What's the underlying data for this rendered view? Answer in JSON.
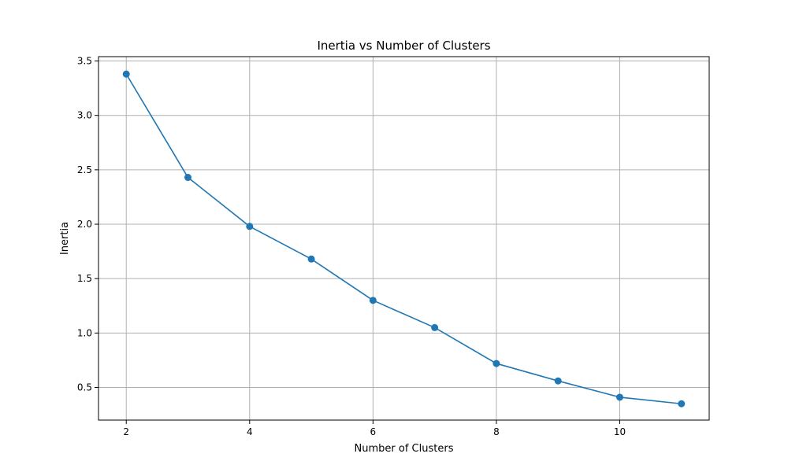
{
  "chart_data": {
    "type": "line",
    "title": "Inertia vs Number of Clusters",
    "xlabel": "Number of Clusters",
    "ylabel": "Inertia",
    "x": [
      2,
      3,
      4,
      5,
      6,
      7,
      8,
      9,
      10,
      11
    ],
    "series": [
      {
        "values": [
          3.38,
          2.43,
          1.98,
          1.68,
          1.3,
          1.05,
          0.72,
          0.56,
          0.41,
          0.35
        ],
        "color": "#1f77b4",
        "marker": "circle"
      }
    ],
    "xlim": [
      1.55,
      11.45
    ],
    "ylim": [
      0.2,
      3.54
    ],
    "xticks": [
      2,
      4,
      6,
      8,
      10
    ],
    "xtick_labels": [
      "2",
      "4",
      "6",
      "8",
      "10"
    ],
    "yticks": [
      0.5,
      1.0,
      1.5,
      2.0,
      2.5,
      3.0,
      3.5
    ],
    "ytick_labels": [
      "0.5",
      "1.0",
      "1.5",
      "2.0",
      "2.5",
      "3.0",
      "3.5"
    ],
    "grid": true
  }
}
